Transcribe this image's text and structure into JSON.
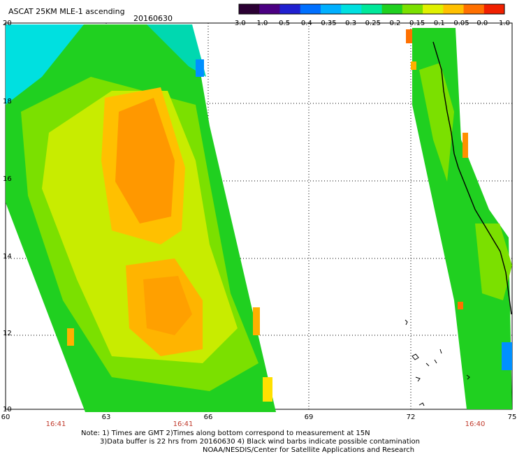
{
  "header": {
    "title": "ASCAT 25KM MLE-1 ascending",
    "date": "20160630"
  },
  "colorbar": {
    "labels": [
      "-3.0",
      "-1.0",
      "-0.5",
      "-0.4",
      "-0.35",
      "-0.3",
      "-0.25",
      "-0.2",
      "-0.15",
      "-0.1",
      "-0.05",
      "0.0",
      "1.0"
    ],
    "colors": [
      "#2b0033",
      "#4b0082",
      "#2020d0",
      "#0070ff",
      "#00b0ff",
      "#00e0e0",
      "#00e89a",
      "#20d020",
      "#7be000",
      "#e0f000",
      "#ffc000",
      "#ff7000",
      "#f02000"
    ]
  },
  "axes": {
    "x_ticks": [
      "60",
      "63",
      "66",
      "69",
      "72",
      "75"
    ],
    "y_ticks": [
      "20",
      "18",
      "16",
      "14",
      "12",
      "10"
    ]
  },
  "pass_times": [
    "16:41",
    "16:41",
    "16:40"
  ],
  "notes": {
    "line1": "Note: 1) Times are GMT 2)Times along bottom correspond to measurement at 15N",
    "line2": "3)Data buffer is 22 hrs from 20160630 4) Black wind barbs indicate possible contamination",
    "line3": "NOAA/NESDIS/Center for Satellite Applications and Research"
  }
}
